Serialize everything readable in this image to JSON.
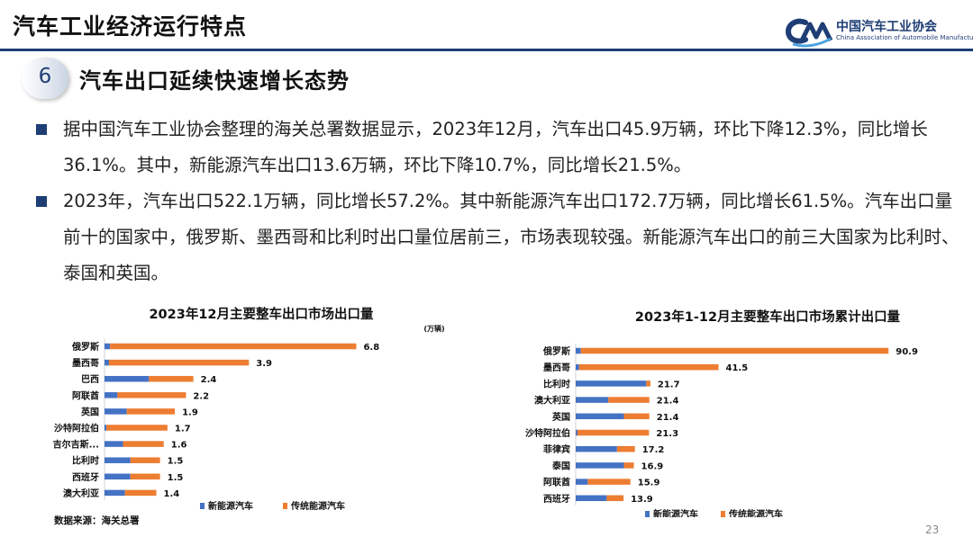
{
  "header": {
    "title": "汽车工业经济运行特点",
    "logo_cn": "中国汽车工业协会",
    "logo_en": "China Association of Automobile Manufacturers"
  },
  "section": {
    "number": "6",
    "title": "汽车出口延续快速增长态势"
  },
  "bullets": [
    "据中国汽车工业协会整理的海关总署数据显示，2023年12月，汽车出口45.9万辆，环比下降12.3%，同比增长36.1%。其中，新能源汽车出口13.6万辆，环比下降10.7%，同比增长21.5%。",
    "2023年，汽车出口522.1万辆，同比增长57.2%。其中新能源汽车出口172.7万辆，同比增长61.5%。汽车出口量前十的国家中，俄罗斯、墨西哥和比利时出口量位居前三，市场表现较强。新能源汽车出口的前三大国家为比利时、泰国和英国。"
  ],
  "source": "数据来源：海关总署",
  "page_number": "23",
  "colors": {
    "nev": "#4472c4",
    "traditional": "#ed7d31",
    "accent": "#1f3e76"
  },
  "chart_data": [
    {
      "type": "bar",
      "orientation": "horizontal",
      "stacked": true,
      "title": "2023年12月主要整车出口市场出口量",
      "unit": "(万辆)",
      "categories": [
        "俄罗斯",
        "墨西哥",
        "巴西",
        "阿联酋",
        "英国",
        "沙特阿拉伯",
        "吉尔吉斯...",
        "比利时",
        "西班牙",
        "澳大利亚"
      ],
      "totals": [
        6.8,
        3.9,
        2.4,
        2.2,
        1.9,
        1.7,
        1.6,
        1.5,
        1.5,
        1.4
      ],
      "series": [
        {
          "name": "新能源汽车",
          "values": [
            0.15,
            0.12,
            1.2,
            0.35,
            0.6,
            0.05,
            0.5,
            0.7,
            0.7,
            0.55
          ]
        },
        {
          "name": "传统能源汽车",
          "values": [
            6.65,
            3.78,
            1.2,
            1.85,
            1.3,
            1.65,
            1.1,
            0.8,
            0.8,
            0.85
          ]
        }
      ],
      "legend": "bottom"
    },
    {
      "type": "bar",
      "orientation": "horizontal",
      "stacked": true,
      "title": "2023年1-12月主要整车出口市场累计出口量",
      "categories": [
        "俄罗斯",
        "墨西哥",
        "比利时",
        "澳大利亚",
        "英国",
        "沙特阿拉伯",
        "菲律宾",
        "泰国",
        "阿联酋",
        "西班牙"
      ],
      "totals": [
        90.9,
        41.5,
        21.7,
        21.4,
        21.4,
        21.3,
        17.2,
        16.9,
        15.9,
        13.9
      ],
      "series": [
        {
          "name": "新能源汽车",
          "values": [
            1.5,
            1.0,
            20.5,
            9.5,
            14.0,
            0.5,
            12.0,
            14.0,
            3.5,
            9.0
          ]
        },
        {
          "name": "传统能源汽车",
          "values": [
            89.4,
            40.5,
            1.2,
            11.9,
            7.4,
            20.8,
            5.2,
            2.9,
            12.4,
            4.9
          ]
        }
      ],
      "legend": "bottom"
    }
  ]
}
